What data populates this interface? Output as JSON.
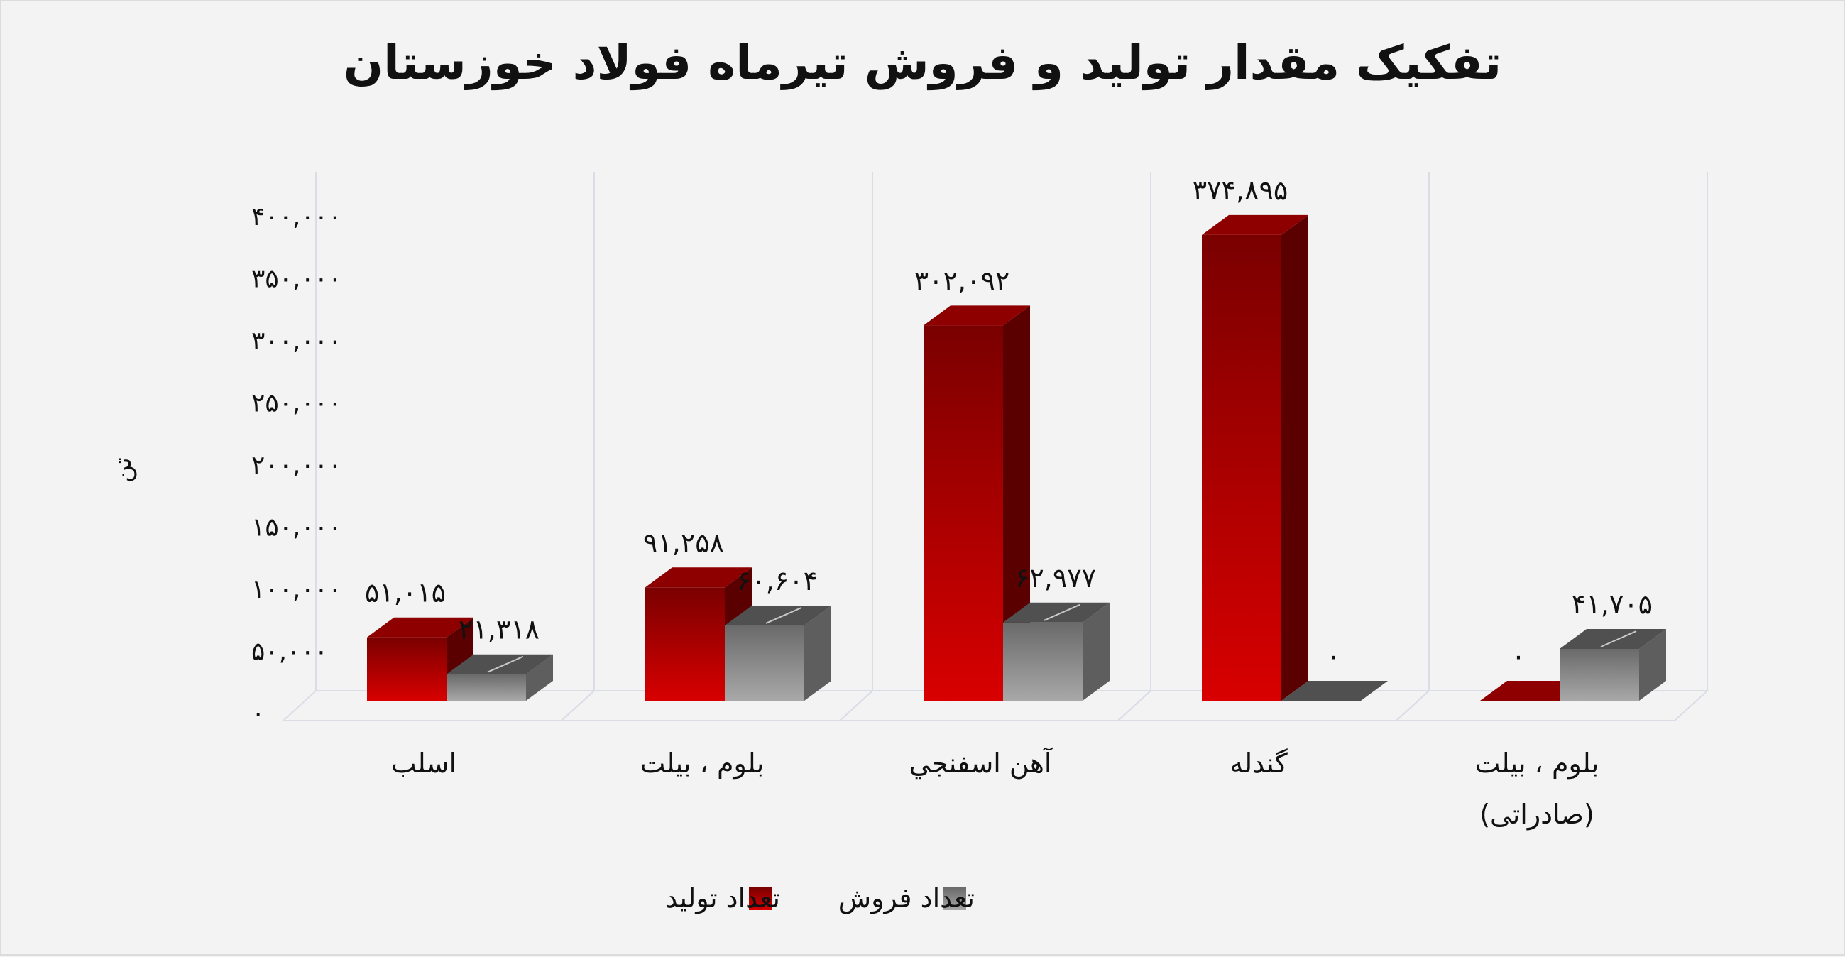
{
  "chart_data": {
    "type": "bar",
    "title": "تفکیک مقدار تولید و فروش تیرماه فولاد خوزستان",
    "ylabel": "تن",
    "ylim": [
      0,
      400000
    ],
    "yticks": [
      0,
      50000,
      100000,
      150000,
      200000,
      250000,
      300000,
      350000,
      400000
    ],
    "ytick_labels": [
      "۰",
      "۵۰,۰۰۰",
      "۱۰۰,۰۰۰",
      "۱۵۰,۰۰۰",
      "۲۰۰,۰۰۰",
      "۲۵۰,۰۰۰",
      "۳۰۰,۰۰۰",
      "۳۵۰,۰۰۰",
      "۴۰۰,۰۰۰"
    ],
    "categories": [
      "اسلب",
      "بلوم ، بیلت",
      "آهن اسفنجي",
      "گندله",
      "بلوم ، بیلت (صادراتی)"
    ],
    "category_lines": [
      [
        "اسلب"
      ],
      [
        "بلوم ، بیلت"
      ],
      [
        "آهن اسفنجي"
      ],
      [
        "گندله"
      ],
      [
        "بلوم ، بیلت",
        "(صادراتی)"
      ]
    ],
    "series": [
      {
        "name": "تعداد تولید",
        "color": "#c00000",
        "values": [
          51015,
          91258,
          302092,
          374895,
          0
        ],
        "labels": [
          "۵۱,۰۱۵",
          "۹۱,۲۵۸",
          "۳۰۲,۰۹۲",
          "۳۷۴,۸۹۵",
          "۰"
        ]
      },
      {
        "name": "تعداد فروش",
        "color": "#808080",
        "values": [
          21318,
          60604,
          62977,
          0,
          41705
        ],
        "labels": [
          "۲۱,۳۱۸",
          "۶۰,۶۰۴",
          "۶۲,۹۷۷",
          "۰",
          "۴۱,۷۰۵"
        ]
      }
    ],
    "legend": {
      "position": "bottom"
    },
    "grid": true
  }
}
